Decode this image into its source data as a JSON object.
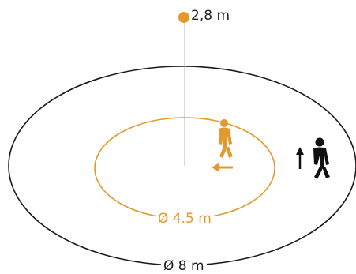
{
  "labels": {
    "mount_height": "2,8 m",
    "inner_diameter": "Ø 4.5 m",
    "outer_diameter": "Ø 8 m"
  },
  "colors": {
    "accent": "#e39a2c",
    "outline": "#1a1a1a",
    "pole": "#9a9a9a"
  },
  "icons": {
    "sensor": "sensor-dot-icon",
    "person_inner": "walking-person-icon",
    "person_outer": "walking-person-icon",
    "arrow_inner": "arrow-left-icon",
    "arrow_outer": "arrow-up-icon"
  }
}
